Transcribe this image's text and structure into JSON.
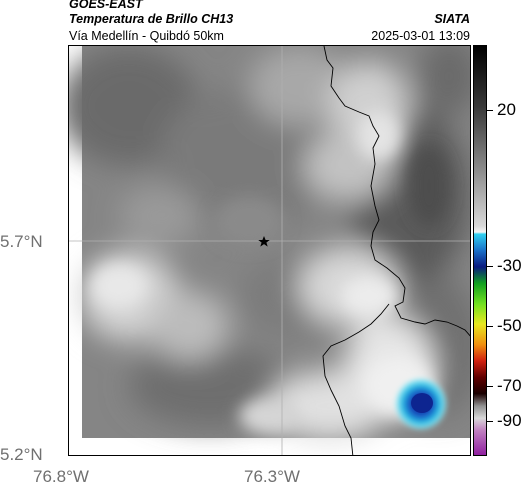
{
  "header": {
    "satellite": "GOES-EAST",
    "product": "Temperatura de Brillo CH13",
    "subtitle": "Vía Medellín - Quibdó 50km",
    "organization": "SIATA",
    "timestamp": "2025-03-01 13:09"
  },
  "axes": {
    "lat_labels": [
      "5.7°N",
      "5.2°N"
    ],
    "lon_labels": [
      "76.8°W",
      "76.3°W"
    ]
  },
  "colorbar": {
    "tick_labels": [
      "20",
      "-30",
      "-50",
      "-70",
      "-90"
    ],
    "unit_hint": "°C"
  },
  "map": {
    "marker": "star-marker",
    "colors": {
      "cloud_light": "#e8e8e8",
      "cloud_mid": "#9a9a9a",
      "cloud_dark": "#555555",
      "cold_core": "#0a2a8a",
      "cold_ring": "#20c8e8"
    }
  }
}
